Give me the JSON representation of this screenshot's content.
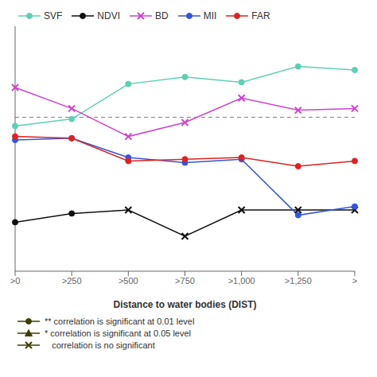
{
  "chart_data": {
    "type": "line",
    "categories": [
      ">0",
      ">250",
      ">500",
      ">750",
      ">1,000",
      ">1,250",
      ">"
    ],
    "xlabel": "Distance to water bodies (DIST)",
    "ylim": [
      -0.55,
      0.85
    ],
    "tick_labels": "x",
    "grid": false,
    "legend": "upper left",
    "series": [
      {
        "name": "SVF",
        "color": "#5ecfb4",
        "values": [
          0.28,
          0.32,
          0.52,
          0.56,
          0.53,
          0.62,
          0.6
        ],
        "markers": [
          "circle",
          "circle",
          "circle",
          "circle",
          "circle",
          "circle",
          "circle"
        ]
      },
      {
        "name": "NDVI",
        "color": "#111111",
        "values": [
          -0.27,
          -0.22,
          -0.2,
          -0.35,
          -0.2,
          -0.2,
          -0.2
        ],
        "markers": [
          "circle",
          "circle",
          "x",
          "x",
          "x",
          "x",
          "x"
        ]
      },
      {
        "name": "BD",
        "color": "#cc44cc",
        "values": [
          0.5,
          0.38,
          0.22,
          0.3,
          0.44,
          0.37,
          0.38
        ],
        "markers": [
          "x",
          "x",
          "x",
          "x",
          "x",
          "x",
          "x"
        ]
      },
      {
        "name": "MII",
        "color": "#3355dd",
        "values": [
          0.2,
          0.21,
          0.1,
          0.07,
          0.09,
          -0.23,
          -0.18
        ],
        "markers": [
          "circle",
          "circle",
          "circle",
          "circle",
          "circle",
          "circle",
          "circle"
        ]
      },
      {
        "name": "FAR",
        "color": "#dd2222",
        "values": [
          0.22,
          0.21,
          0.08,
          0.09,
          0.1,
          0.05,
          0.08
        ],
        "markers": [
          "circle",
          "circle",
          "circle",
          "circle",
          "circle",
          "circle",
          "circle"
        ]
      }
    ],
    "reference_lines": [
      {
        "y": 0.33,
        "color": "gray",
        "line_style": "dashed"
      }
    ],
    "marker_legend": [
      {
        "label": "** correlation is significant at 0.01 level",
        "marker": "circle",
        "color": "#3d3d00"
      },
      {
        "label": "* correlation is significant at 0.05 level",
        "marker": "triangle",
        "color": "#3d3d00"
      },
      {
        "label": "   correlation is no significant",
        "marker": "x",
        "color": "#3d3d00"
      }
    ]
  }
}
